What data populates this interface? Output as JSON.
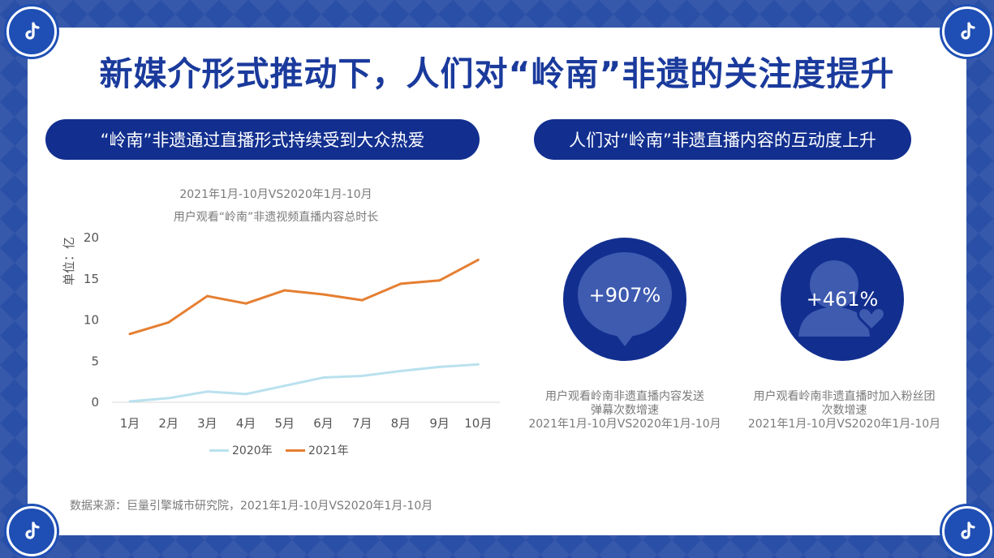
{
  "slide": {
    "title": "新媒介形式推动下，人们对“岭南”非遗的关注度提升",
    "left_pill": "“岭南”非遗通过直播形式持续受到大众热爱",
    "right_pill": "人们对“岭南”非遗直播内容的互动度上升",
    "source": "数据来源：巨量引擎城市研究院，2021年1月-10月VS2020年1月-10月"
  },
  "colors": {
    "frame": "#2a4fa6",
    "navy": "#122f8f",
    "title": "#1a3a9c",
    "series_2020": "#b9e1ee",
    "series_2021": "#e57f32"
  },
  "chart_data": {
    "type": "line",
    "title": "2021年1月-10月VS2020年1月-10月",
    "subtitle": "用户观看“岭南”非遗视频直播内容总时长",
    "ylabel": "单位：亿",
    "xlabel": "",
    "categories": [
      "1月",
      "2月",
      "3月",
      "4月",
      "5月",
      "6月",
      "7月",
      "8月",
      "9月",
      "10月"
    ],
    "yticks": [
      "0",
      "5",
      "10",
      "15",
      "20"
    ],
    "ylim": [
      0,
      20
    ],
    "grid": false,
    "legend_position": "bottom",
    "series": [
      {
        "name": "2020年",
        "color": "#b9e1ee",
        "values": [
          0.1,
          0.5,
          1.3,
          1.0,
          2.0,
          3.0,
          3.2,
          3.8,
          4.3,
          4.6
        ]
      },
      {
        "name": "2021年",
        "color": "#e57f32",
        "values": [
          8.3,
          9.7,
          12.9,
          12.0,
          13.6,
          13.1,
          12.4,
          14.4,
          14.8,
          17.3
        ]
      }
    ]
  },
  "stats": [
    {
      "icon": "speech-bubble-icon",
      "value": "+907%",
      "caption_line1": "用户观看岭南非遗直播内容发送",
      "caption_line2": "弹幕次数增速",
      "caption_line3": "2021年1月-10月VS2020年1月-10月"
    },
    {
      "icon": "fan-user-heart-icon",
      "value": "+461%",
      "caption_line1": "用户观看岭南非遗直播时加入粉丝团",
      "caption_line2": "次数增速",
      "caption_line3": "2021年1月-10月VS2020年1月-10月"
    }
  ]
}
